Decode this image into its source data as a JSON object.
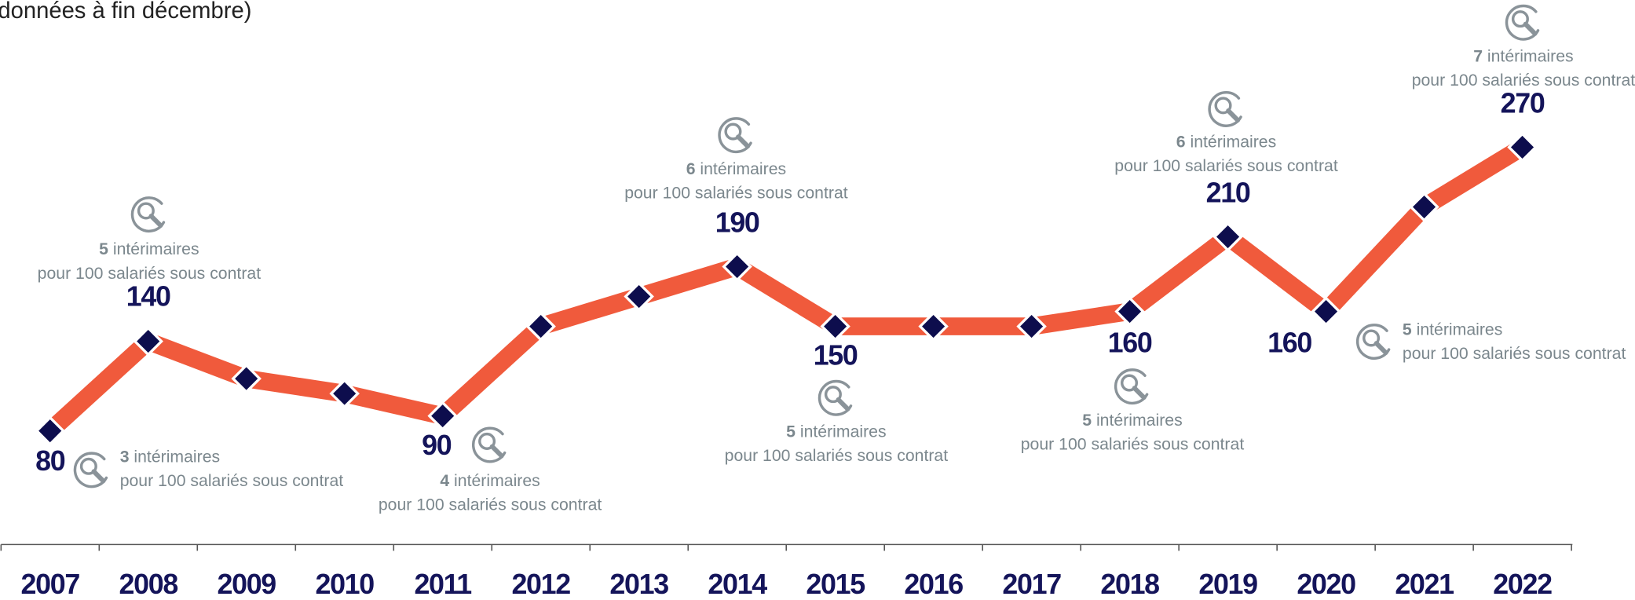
{
  "chart_data": {
    "type": "line",
    "title": "données à fin décembre)",
    "categories": [
      "2007",
      "2008",
      "2009",
      "2010",
      "2011",
      "2012",
      "2013",
      "2014",
      "2015",
      "2016",
      "2017",
      "2018",
      "2019",
      "2020",
      "2021",
      "2022"
    ],
    "series": [
      {
        "color": "#f05a3c",
        "marker_color": "#0d0d4d",
        "values": [
          80,
          140,
          115,
          105,
          90,
          150,
          170,
          190,
          150,
          150,
          150,
          160,
          210,
          160,
          230,
          270
        ],
        "value_labels": [
          "80",
          "140",
          null,
          null,
          "90",
          null,
          null,
          "190",
          "150",
          null,
          null,
          "160",
          "210",
          "160",
          null,
          "270"
        ]
      }
    ],
    "annotations": [
      {
        "category": "2007",
        "number": 3,
        "text": "intérimaires",
        "text2": "pour 100 salariés sous contrat"
      },
      {
        "category": "2008",
        "number": 5,
        "text": "intérimaires",
        "text2": "pour 100 salariés sous contrat"
      },
      {
        "category": "2011",
        "number": 4,
        "text": "intérimaires",
        "text2": "pour 100 salariés sous contrat"
      },
      {
        "category": "2014",
        "number": 6,
        "text": "intérimaires",
        "text2": "pour 100 salariés sous contrat"
      },
      {
        "category": "2015",
        "number": 5,
        "text": "intérimaires",
        "text2": "pour 100 salariés sous contrat"
      },
      {
        "category": "2018",
        "number": 5,
        "text": "intérimaires",
        "text2": "pour 100 salariés sous contrat"
      },
      {
        "category": "2019",
        "number": 6,
        "text": "intérimaires",
        "text2": "pour 100 salariés sous contrat"
      },
      {
        "category": "2020",
        "number": 5,
        "text": "intérimaires",
        "text2": "pour 100 salariés sous contrat"
      },
      {
        "category": "2022",
        "number": 7,
        "text": "intérimaires",
        "text2": "pour 100 salariés sous contrat"
      }
    ]
  }
}
